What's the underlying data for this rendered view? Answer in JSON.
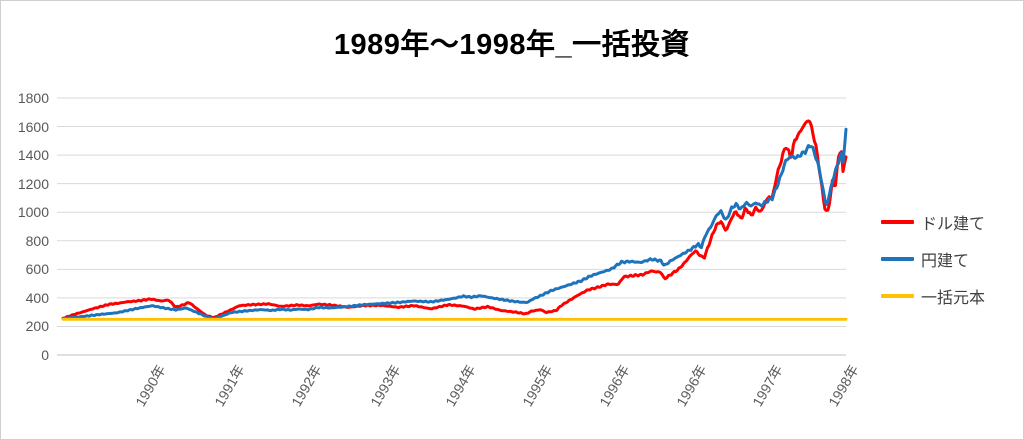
{
  "title": "1989年～1998年_一括投資",
  "chart_data": {
    "type": "line",
    "title": "1989年～1998年_一括投資",
    "legend_position": "right",
    "grid": "horizontal-only",
    "background_color": "#FFFFFF",
    "gridline_color": "#D9D9D9",
    "axis_label_color": "#595959",
    "y_axis": {
      "min": 0,
      "max": 1800,
      "step": 200,
      "tick_labels": [
        "0",
        "200",
        "400",
        "600",
        "800",
        "1000",
        "1200",
        "1400",
        "1600",
        "1800"
      ]
    },
    "x_axis": {
      "tick_labels": [
        "1990年",
        "1991年",
        "1992年",
        "1993年",
        "1994年",
        "1995年",
        "1996年",
        "1996年",
        "1997年",
        "1998年"
      ],
      "tick_positions": [
        0.115,
        0.216,
        0.314,
        0.415,
        0.511,
        0.609,
        0.708,
        0.806,
        0.903,
        1.0
      ],
      "label_rotation_deg": -60
    },
    "series": [
      {
        "name": "ドル建て",
        "color": "#FF0000",
        "points": [
          [
            0,
            256
          ],
          [
            0.013,
            282
          ],
          [
            0.024,
            300
          ],
          [
            0.037,
            322
          ],
          [
            0.059,
            355
          ],
          [
            0.07,
            362
          ],
          [
            0.081,
            372
          ],
          [
            0.097,
            380
          ],
          [
            0.112,
            392
          ],
          [
            0.125,
            378
          ],
          [
            0.135,
            385
          ],
          [
            0.144,
            335
          ],
          [
            0.152,
            348
          ],
          [
            0.161,
            368
          ],
          [
            0.174,
            312
          ],
          [
            0.183,
            276
          ],
          [
            0.193,
            262
          ],
          [
            0.204,
            290
          ],
          [
            0.215,
            318
          ],
          [
            0.225,
            345
          ],
          [
            0.24,
            352
          ],
          [
            0.263,
            358
          ],
          [
            0.278,
            340
          ],
          [
            0.3,
            350
          ],
          [
            0.313,
            344
          ],
          [
            0.326,
            356
          ],
          [
            0.342,
            350
          ],
          [
            0.364,
            334
          ],
          [
            0.384,
            346
          ],
          [
            0.406,
            348
          ],
          [
            0.428,
            334
          ],
          [
            0.448,
            346
          ],
          [
            0.47,
            323
          ],
          [
            0.492,
            352
          ],
          [
            0.512,
            342
          ],
          [
            0.525,
            322
          ],
          [
            0.543,
            338
          ],
          [
            0.559,
            312
          ],
          [
            0.578,
            300
          ],
          [
            0.591,
            288
          ],
          [
            0.598,
            306
          ],
          [
            0.61,
            318
          ],
          [
            0.617,
            298
          ],
          [
            0.63,
            312
          ],
          [
            0.636,
            345
          ],
          [
            0.649,
            390
          ],
          [
            0.658,
            420
          ],
          [
            0.67,
            455
          ],
          [
            0.683,
            474
          ],
          [
            0.696,
            496
          ],
          [
            0.709,
            494
          ],
          [
            0.716,
            548
          ],
          [
            0.728,
            556
          ],
          [
            0.74,
            562
          ],
          [
            0.751,
            588
          ],
          [
            0.764,
            578
          ],
          [
            0.768,
            532
          ],
          [
            0.777,
            566
          ],
          [
            0.786,
            601
          ],
          [
            0.793,
            640
          ],
          [
            0.802,
            700
          ],
          [
            0.808,
            730
          ],
          [
            0.815,
            690
          ],
          [
            0.819,
            682
          ],
          [
            0.828,
            822
          ],
          [
            0.834,
            904
          ],
          [
            0.84,
            938
          ],
          [
            0.847,
            868
          ],
          [
            0.853,
            950
          ],
          [
            0.859,
            1008
          ],
          [
            0.866,
            950
          ],
          [
            0.872,
            1030
          ],
          [
            0.879,
            975
          ],
          [
            0.885,
            1030
          ],
          [
            0.891,
            1000
          ],
          [
            0.898,
            1080
          ],
          [
            0.902,
            1110
          ],
          [
            0.906,
            1100
          ],
          [
            0.911,
            1240
          ],
          [
            0.918,
            1380
          ],
          [
            0.923,
            1464
          ],
          [
            0.927,
            1420
          ],
          [
            0.93,
            1372
          ],
          [
            0.934,
            1500
          ],
          [
            0.939,
            1540
          ],
          [
            0.943,
            1580
          ],
          [
            0.948,
            1620
          ],
          [
            0.953,
            1652
          ],
          [
            0.957,
            1570
          ],
          [
            0.962,
            1450
          ],
          [
            0.966,
            1300
          ],
          [
            0.969,
            1180
          ],
          [
            0.973,
            1030
          ],
          [
            0.976,
            988
          ],
          [
            0.98,
            1100
          ],
          [
            0.983,
            1230
          ],
          [
            0.986,
            1160
          ],
          [
            0.99,
            1380
          ],
          [
            0.994,
            1443
          ],
          [
            0.996,
            1280
          ],
          [
            1,
            1390
          ]
        ]
      },
      {
        "name": "円建て",
        "color": "#1E74BC",
        "points": [
          [
            0,
            256
          ],
          [
            0.023,
            268
          ],
          [
            0.049,
            285
          ],
          [
            0.068,
            295
          ],
          [
            0.081,
            310
          ],
          [
            0.101,
            333
          ],
          [
            0.114,
            345
          ],
          [
            0.128,
            330
          ],
          [
            0.144,
            316
          ],
          [
            0.157,
            330
          ],
          [
            0.17,
            300
          ],
          [
            0.183,
            270
          ],
          [
            0.193,
            252
          ],
          [
            0.204,
            275
          ],
          [
            0.215,
            298
          ],
          [
            0.227,
            305
          ],
          [
            0.236,
            310
          ],
          [
            0.253,
            318
          ],
          [
            0.266,
            312
          ],
          [
            0.278,
            320
          ],
          [
            0.291,
            315
          ],
          [
            0.3,
            322
          ],
          [
            0.313,
            318
          ],
          [
            0.326,
            333
          ],
          [
            0.342,
            330
          ],
          [
            0.364,
            340
          ],
          [
            0.384,
            352
          ],
          [
            0.406,
            360
          ],
          [
            0.428,
            368
          ],
          [
            0.448,
            378
          ],
          [
            0.47,
            372
          ],
          [
            0.492,
            390
          ],
          [
            0.502,
            400
          ],
          [
            0.511,
            412
          ],
          [
            0.521,
            405
          ],
          [
            0.534,
            415
          ],
          [
            0.547,
            400
          ],
          [
            0.559,
            390
          ],
          [
            0.572,
            378
          ],
          [
            0.585,
            370
          ],
          [
            0.593,
            368
          ],
          [
            0.6,
            392
          ],
          [
            0.61,
            415
          ],
          [
            0.623,
            450
          ],
          [
            0.636,
            473
          ],
          [
            0.649,
            496
          ],
          [
            0.662,
            520
          ],
          [
            0.674,
            554
          ],
          [
            0.687,
            578
          ],
          [
            0.7,
            601
          ],
          [
            0.713,
            650
          ],
          [
            0.725,
            655
          ],
          [
            0.738,
            648
          ],
          [
            0.751,
            671
          ],
          [
            0.764,
            659
          ],
          [
            0.768,
            625
          ],
          [
            0.776,
            659
          ],
          [
            0.789,
            700
          ],
          [
            0.802,
            740
          ],
          [
            0.811,
            776
          ],
          [
            0.815,
            752
          ],
          [
            0.821,
            846
          ],
          [
            0.828,
            904
          ],
          [
            0.834,
            974
          ],
          [
            0.84,
            1009
          ],
          [
            0.847,
            939
          ],
          [
            0.853,
            1021
          ],
          [
            0.859,
            1056
          ],
          [
            0.866,
            1021
          ],
          [
            0.872,
            1067
          ],
          [
            0.879,
            1044
          ],
          [
            0.885,
            1067
          ],
          [
            0.891,
            1045
          ],
          [
            0.9,
            1080
          ],
          [
            0.906,
            1100
          ],
          [
            0.914,
            1210
          ],
          [
            0.923,
            1360
          ],
          [
            0.93,
            1395
          ],
          [
            0.936,
            1380
          ],
          [
            0.943,
            1405
          ],
          [
            0.949,
            1430
          ],
          [
            0.955,
            1478
          ],
          [
            0.962,
            1380
          ],
          [
            0.966,
            1300
          ],
          [
            0.971,
            1150
          ],
          [
            0.974,
            1060
          ],
          [
            0.976,
            1050
          ],
          [
            0.981,
            1180
          ],
          [
            0.987,
            1300
          ],
          [
            0.994,
            1410
          ],
          [
            0.996,
            1350
          ],
          [
            1,
            1565
          ]
        ]
      },
      {
        "name": "一括元本",
        "color": "#FFC000",
        "points": [
          [
            0,
            250
          ],
          [
            1,
            250
          ]
        ]
      }
    ]
  }
}
